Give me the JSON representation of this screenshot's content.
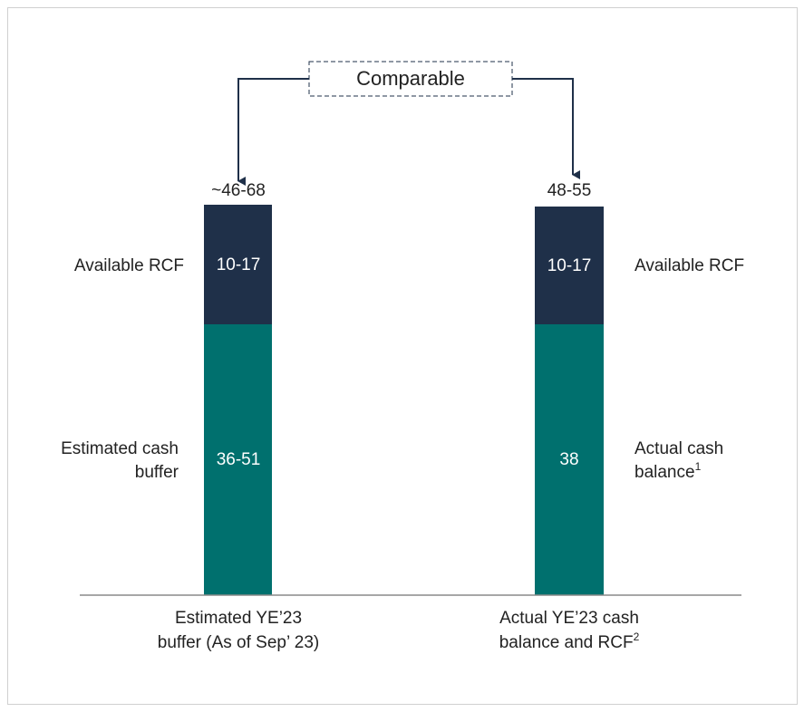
{
  "comparison_label": "Comparable",
  "bars": [
    {
      "total": "~46-68",
      "segments": [
        {
          "label": [
            "Available RCF"
          ],
          "value": "10-17"
        },
        {
          "label": [
            "Estimated cash",
            "buffer"
          ],
          "value": "36-51"
        }
      ],
      "category": [
        "Estimated YE’23",
        "buffer (As of Sep’ 23)"
      ]
    },
    {
      "total": "48-55",
      "segments": [
        {
          "label": [
            "Available RCF"
          ],
          "value": "10-17"
        },
        {
          "label": [
            "Actual cash",
            "balance"
          ],
          "footnote": "1",
          "value": "38"
        }
      ],
      "category": [
        "Actual YE’23 cash",
        "balance and RCF"
      ],
      "category_footnote": "2"
    }
  ]
}
